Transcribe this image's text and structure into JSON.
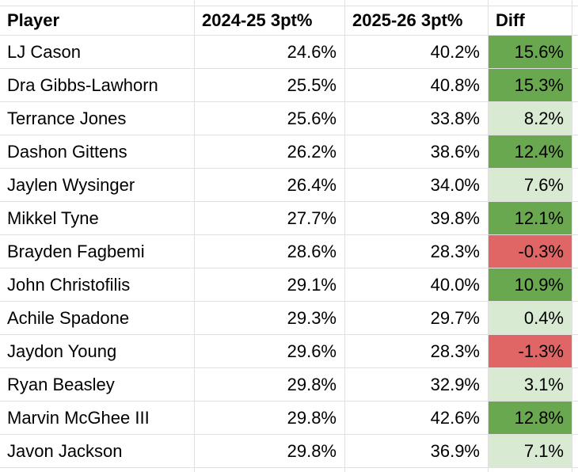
{
  "app": {
    "kind": "spreadsheet-table",
    "description_visible": false
  },
  "colors": {
    "background": "#ffffff",
    "text": "#000000",
    "gridline": "#e0e0e0",
    "diff_strong_positive": "#6aa84f",
    "diff_positive": "#d9ead3",
    "diff_negative": "#e06666"
  },
  "table": {
    "headers": [
      "Player",
      "2024-25 3pt%",
      "2025-26 3pt%",
      "Diff"
    ],
    "rows": [
      {
        "player": "LJ Cason",
        "prev": "24.6%",
        "curr": "40.2%",
        "diff": "15.6%",
        "diff_level": "strong_positive"
      },
      {
        "player": "Dra Gibbs-Lawhorn",
        "prev": "25.5%",
        "curr": "40.8%",
        "diff": "15.3%",
        "diff_level": "strong_positive"
      },
      {
        "player": "Terrance Jones",
        "prev": "25.6%",
        "curr": "33.8%",
        "diff": "8.2%",
        "diff_level": "positive"
      },
      {
        "player": "Dashon Gittens",
        "prev": "26.2%",
        "curr": "38.6%",
        "diff": "12.4%",
        "diff_level": "strong_positive"
      },
      {
        "player": "Jaylen Wysinger",
        "prev": "26.4%",
        "curr": "34.0%",
        "diff": "7.6%",
        "diff_level": "positive"
      },
      {
        "player": "Mikkel Tyne",
        "prev": "27.7%",
        "curr": "39.8%",
        "diff": "12.1%",
        "diff_level": "strong_positive"
      },
      {
        "player": "Brayden Fagbemi",
        "prev": "28.6%",
        "curr": "28.3%",
        "diff": "-0.3%",
        "diff_level": "negative"
      },
      {
        "player": "John Christofilis",
        "prev": "29.1%",
        "curr": "40.0%",
        "diff": "10.9%",
        "diff_level": "strong_positive"
      },
      {
        "player": "Achile Spadone",
        "prev": "29.3%",
        "curr": "29.7%",
        "diff": "0.4%",
        "diff_level": "positive"
      },
      {
        "player": "Jaydon Young",
        "prev": "29.6%",
        "curr": "28.3%",
        "diff": "-1.3%",
        "diff_level": "negative"
      },
      {
        "player": "Ryan Beasley",
        "prev": "29.8%",
        "curr": "32.9%",
        "diff": "3.1%",
        "diff_level": "positive"
      },
      {
        "player": "Marvin McGhee III",
        "prev": "29.8%",
        "curr": "42.6%",
        "diff": "12.8%",
        "diff_level": "strong_positive"
      },
      {
        "player": "Javon Jackson",
        "prev": "29.8%",
        "curr": "36.9%",
        "diff": "7.1%",
        "diff_level": "positive"
      }
    ]
  }
}
